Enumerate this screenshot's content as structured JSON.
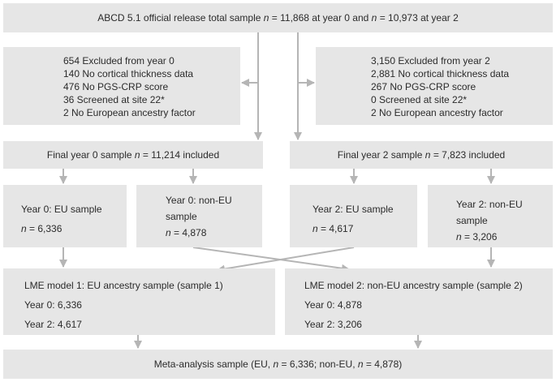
{
  "top": "ABCD 5.1 official release total sample n = 11,868 at year 0 and n = 10,973 at year 2",
  "excluded_year0": [
    "654 Excluded from year 0",
    "140 No cortical thickness data",
    "476 No PGS-CRP score",
    "36 Screened at site 22*",
    "2 No European ancestry factor"
  ],
  "excluded_year2": [
    "3,150 Excluded from year 2",
    "2,881 No cortical thickness data",
    "267 No PGS-CRP score",
    "0 Screened at site 22*",
    "2 No European ancestry factor"
  ],
  "final_year0": "Final year 0 sample n = 11,214 included",
  "final_year2": "Final year 2 sample n = 7,823 included",
  "y0_eu": {
    "title": "Year 0: EU sample",
    "n": "n = 6,336"
  },
  "y0_noneu": {
    "title1": "Year 0: non-EU",
    "title2": "sample",
    "n": "n = 4,878"
  },
  "y2_eu": {
    "title": "Year 2:  EU sample",
    "n": "n = 4,617"
  },
  "y2_noneu": {
    "title1": "Year 2: non-EU",
    "title2": "sample",
    "n": "n = 3,206"
  },
  "model1": {
    "title": "LME model 1: EU ancestry sample (sample 1)",
    "y0": "Year 0:  6,336",
    "y2": "Year 2: 4,617"
  },
  "model2": {
    "title": "LME model 2: non-EU ancestry sample (sample 2)",
    "y0": "Year 0: 4,878",
    "y2": "Year 2: 3,206"
  },
  "meta": "Meta-analysis sample (EU, n = 6,336; non-EU, n = 4,878)",
  "colors": {
    "box": "#e6e6e6",
    "arrow": "#b5b5b5",
    "text": "#2b2b2b"
  }
}
